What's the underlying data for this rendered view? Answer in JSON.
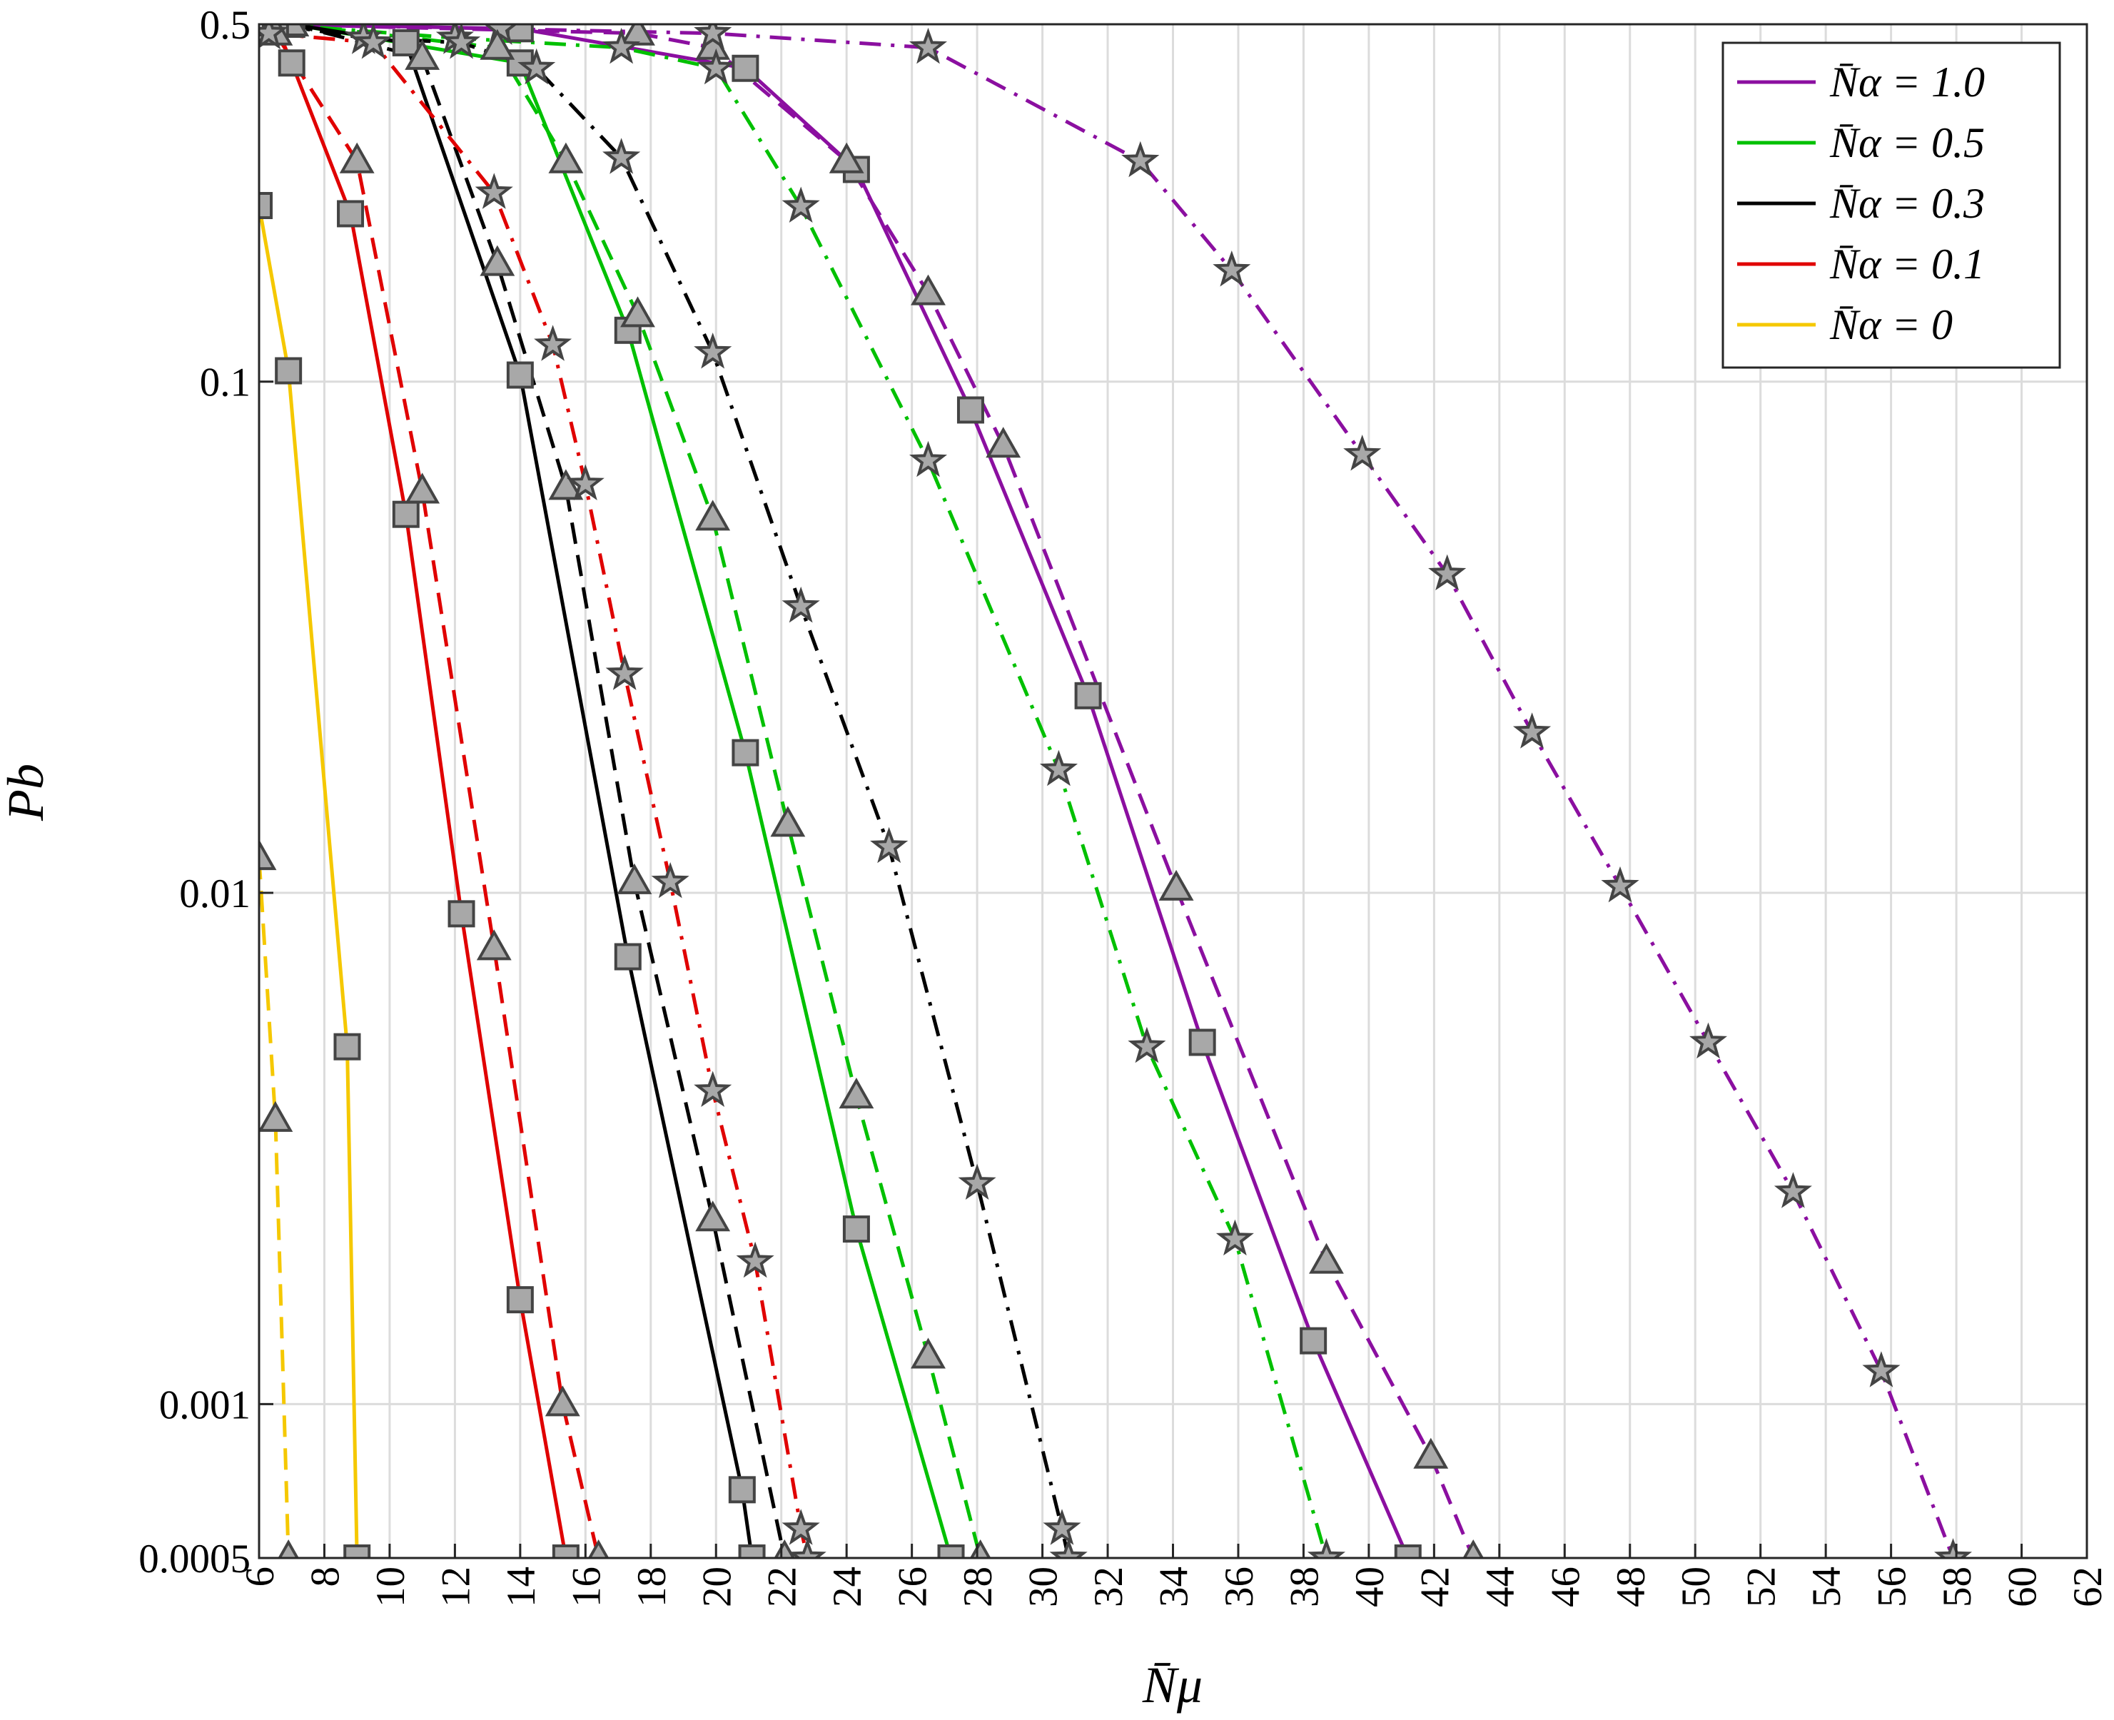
{
  "chart_data": {
    "type": "line",
    "xlabel": "N̄μ",
    "ylabel": "Pb",
    "ylog": true,
    "grid": true,
    "xlim": [
      6,
      62
    ],
    "xticks": [
      6,
      8,
      10,
      12,
      14,
      16,
      18,
      20,
      22,
      24,
      26,
      28,
      30,
      32,
      34,
      36,
      38,
      40,
      42,
      44,
      46,
      48,
      50,
      52,
      54,
      56,
      58,
      60,
      62
    ],
    "ylim": [
      0.0005,
      0.5
    ],
    "yticks": [
      0.0005,
      0.001,
      0.01,
      0.1,
      0.5
    ],
    "legend": "upper right",
    "series": [
      {
        "name": "N̄α = 1.0",
        "color": "#8b0fa0",
        "style": "solid",
        "marker": "square",
        "x": [
          6.5,
          14,
          20.9,
          24.3,
          27.8,
          31.4,
          34.9,
          38.3,
          41.2
        ],
        "values": [
          0.5,
          0.49,
          0.41,
          0.26,
          0.088,
          0.0243,
          0.0051,
          0.00133,
          0.0005
        ]
      },
      {
        "color": "#8b0fa0",
        "style": "dashed",
        "marker": "triangle",
        "x": [
          6.5,
          17.6,
          19.9,
          24,
          26.5,
          28.8,
          34.1,
          38.7,
          41.9,
          43.2
        ],
        "values": [
          0.5,
          0.48,
          0.45,
          0.27,
          0.149,
          0.075,
          0.0102,
          0.0019,
          0.00079,
          0.0005
        ]
      },
      {
        "color": "#8b0fa0",
        "style": "dashdot",
        "marker": "star",
        "x": [
          6.5,
          13.4,
          19.9,
          26.5,
          33,
          35.8,
          39.8,
          42.4,
          45,
          47.7,
          50.4,
          53,
          55.7,
          57.9
        ],
        "values": [
          0.5,
          0.49,
          0.48,
          0.45,
          0.27,
          0.165,
          0.072,
          0.042,
          0.0206,
          0.0103,
          0.0051,
          0.0026,
          0.00116,
          0.0005
        ]
      },
      {
        "name": "N̄α = 0.5",
        "color": "#00c000",
        "style": "solid",
        "marker": "square",
        "x": [
          7,
          14,
          17.3,
          20.9,
          24.3,
          27.2
        ],
        "values": [
          0.5,
          0.42,
          0.126,
          0.0188,
          0.0022,
          0.0005
        ]
      },
      {
        "color": "#00c000",
        "style": "dashed",
        "marker": "triangle",
        "x": [
          7,
          13.3,
          15.4,
          17.6,
          19.9,
          22.2,
          24.3,
          26.5,
          28.1
        ],
        "values": [
          0.5,
          0.45,
          0.27,
          0.135,
          0.054,
          0.0136,
          0.004,
          0.00124,
          0.0005
        ]
      },
      {
        "color": "#00c000",
        "style": "dashdot",
        "marker": "star",
        "x": [
          6.5,
          12,
          17.1,
          20,
          22.6,
          26.5,
          30.5,
          33.2,
          35.9,
          38.7
        ],
        "values": [
          0.5,
          0.47,
          0.45,
          0.41,
          0.22,
          0.07,
          0.0174,
          0.005,
          0.0021,
          0.0005
        ]
      },
      {
        "name": "N̄α = 0.3",
        "color": "#000000",
        "style": "solid",
        "marker": "square",
        "x": [
          7,
          10.5,
          14,
          17.3,
          20.8,
          21.1
        ],
        "values": [
          0.5,
          0.46,
          0.103,
          0.0075,
          0.00068,
          0.0005
        ]
      },
      {
        "color": "#000000",
        "style": "dashed",
        "marker": "triangle",
        "x": [
          7,
          11,
          13.3,
          15.4,
          17.5,
          19.9,
          22.1
        ],
        "values": [
          0.5,
          0.43,
          0.17,
          0.062,
          0.0105,
          0.0023,
          0.0005
        ]
      },
      {
        "color": "#000000",
        "style": "dashdot",
        "marker": "star",
        "x": [
          6.5,
          9.2,
          12.2,
          14.5,
          17.1,
          19.9,
          22.6,
          25.3,
          28,
          30.6,
          30.8
        ],
        "values": [
          0.5,
          0.47,
          0.46,
          0.41,
          0.274,
          0.114,
          0.0363,
          0.0123,
          0.0027,
          0.00057,
          0.0005
        ]
      },
      {
        "name": "N̄α = 0.1",
        "color": "#e00000",
        "style": "solid",
        "marker": "square",
        "x": [
          6.5,
          7,
          8.8,
          10.5,
          12.2,
          14,
          15.4
        ],
        "values": [
          0.5,
          0.42,
          0.213,
          0.055,
          0.0091,
          0.0016,
          0.0005
        ]
      },
      {
        "color": "#e00000",
        "style": "dashed",
        "marker": "triangle",
        "x": [
          6.5,
          9,
          11,
          13.2,
          15.3,
          16.4
        ],
        "values": [
          0.48,
          0.27,
          0.061,
          0.0078,
          0.001,
          0.0005
        ]
      },
      {
        "color": "#e00000",
        "style": "dashdot",
        "marker": "star",
        "x": [
          6.3,
          9.5,
          13.2,
          15,
          16,
          17.2,
          18.6,
          19.9,
          21.2,
          22.6,
          22.8
        ],
        "values": [
          0.48,
          0.46,
          0.234,
          0.118,
          0.063,
          0.0268,
          0.0105,
          0.0041,
          0.0019,
          0.00057,
          0.0005
        ]
      },
      {
        "name": "N̄α = 0",
        "color": "#f5c800",
        "style": "solid",
        "marker": "square",
        "x": [
          6,
          6.9,
          8.7,
          9
        ],
        "values": [
          0.221,
          0.105,
          0.005,
          0.0005
        ]
      },
      {
        "color": "#f5c800",
        "style": "dashed",
        "marker": "triangle",
        "x": [
          6,
          6.5,
          6.9
        ],
        "values": [
          0.0117,
          0.0036,
          0.0005
        ]
      }
    ]
  }
}
